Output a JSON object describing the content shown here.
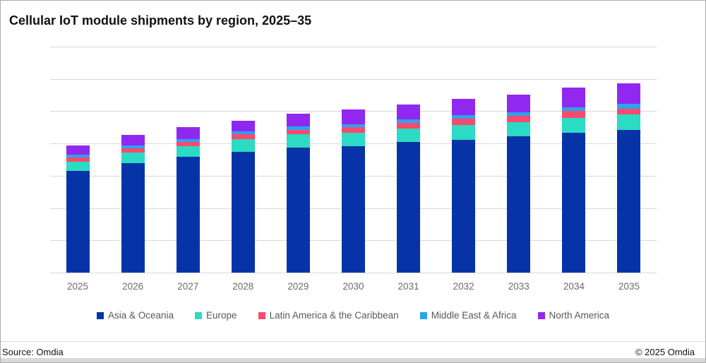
{
  "title": "Cellular IoT module shipments by region, 2025–35",
  "footer": {
    "source": "Source: Omdia",
    "copyright": "© 2025 Omdia"
  },
  "colors": {
    "gridline": "#d9d9d9",
    "axis_text": "#6a6a6a",
    "legend_text": "#595959",
    "footer_divider": "#dcdcdc",
    "footer_strip": "#d9d9d9",
    "title_text": "#111111"
  },
  "chart_data": {
    "type": "bar",
    "stacked": true,
    "title": "Cellular IoT module shipments by region, 2025–35",
    "xlabel": "",
    "ylabel": "",
    "y_axis_labels_visible": false,
    "units": "relative gridline units (y-axis is unlabeled in source image)",
    "ylim": [
      0,
      7
    ],
    "y_gridline_interval": 1,
    "grid": true,
    "legend_position": "bottom",
    "categories": [
      "2025",
      "2026",
      "2027",
      "2028",
      "2029",
      "2030",
      "2031",
      "2032",
      "2033",
      "2034",
      "2035"
    ],
    "series": [
      {
        "name": "Asia & Oceania",
        "color": "#0634a8",
        "values": [
          3.15,
          3.39,
          3.59,
          3.74,
          3.87,
          3.92,
          4.05,
          4.12,
          4.23,
          4.33,
          4.41
        ]
      },
      {
        "name": "Europe",
        "color": "#2bdbc3",
        "values": [
          0.29,
          0.33,
          0.32,
          0.39,
          0.42,
          0.42,
          0.42,
          0.46,
          0.44,
          0.47,
          0.48
        ]
      },
      {
        "name": "Latin America & the Caribbean",
        "color": "#f94a6e",
        "values": [
          0.13,
          0.13,
          0.13,
          0.15,
          0.14,
          0.16,
          0.17,
          0.18,
          0.18,
          0.2,
          0.19
        ]
      },
      {
        "name": "Middle East & Africa",
        "color": "#2aa3f0",
        "values": [
          0.09,
          0.09,
          0.09,
          0.09,
          0.1,
          0.1,
          0.11,
          0.11,
          0.11,
          0.13,
          0.15
        ]
      },
      {
        "name": "North America",
        "color": "#9128f0",
        "values": [
          0.28,
          0.33,
          0.37,
          0.34,
          0.39,
          0.46,
          0.46,
          0.51,
          0.56,
          0.6,
          0.64
        ]
      }
    ]
  }
}
